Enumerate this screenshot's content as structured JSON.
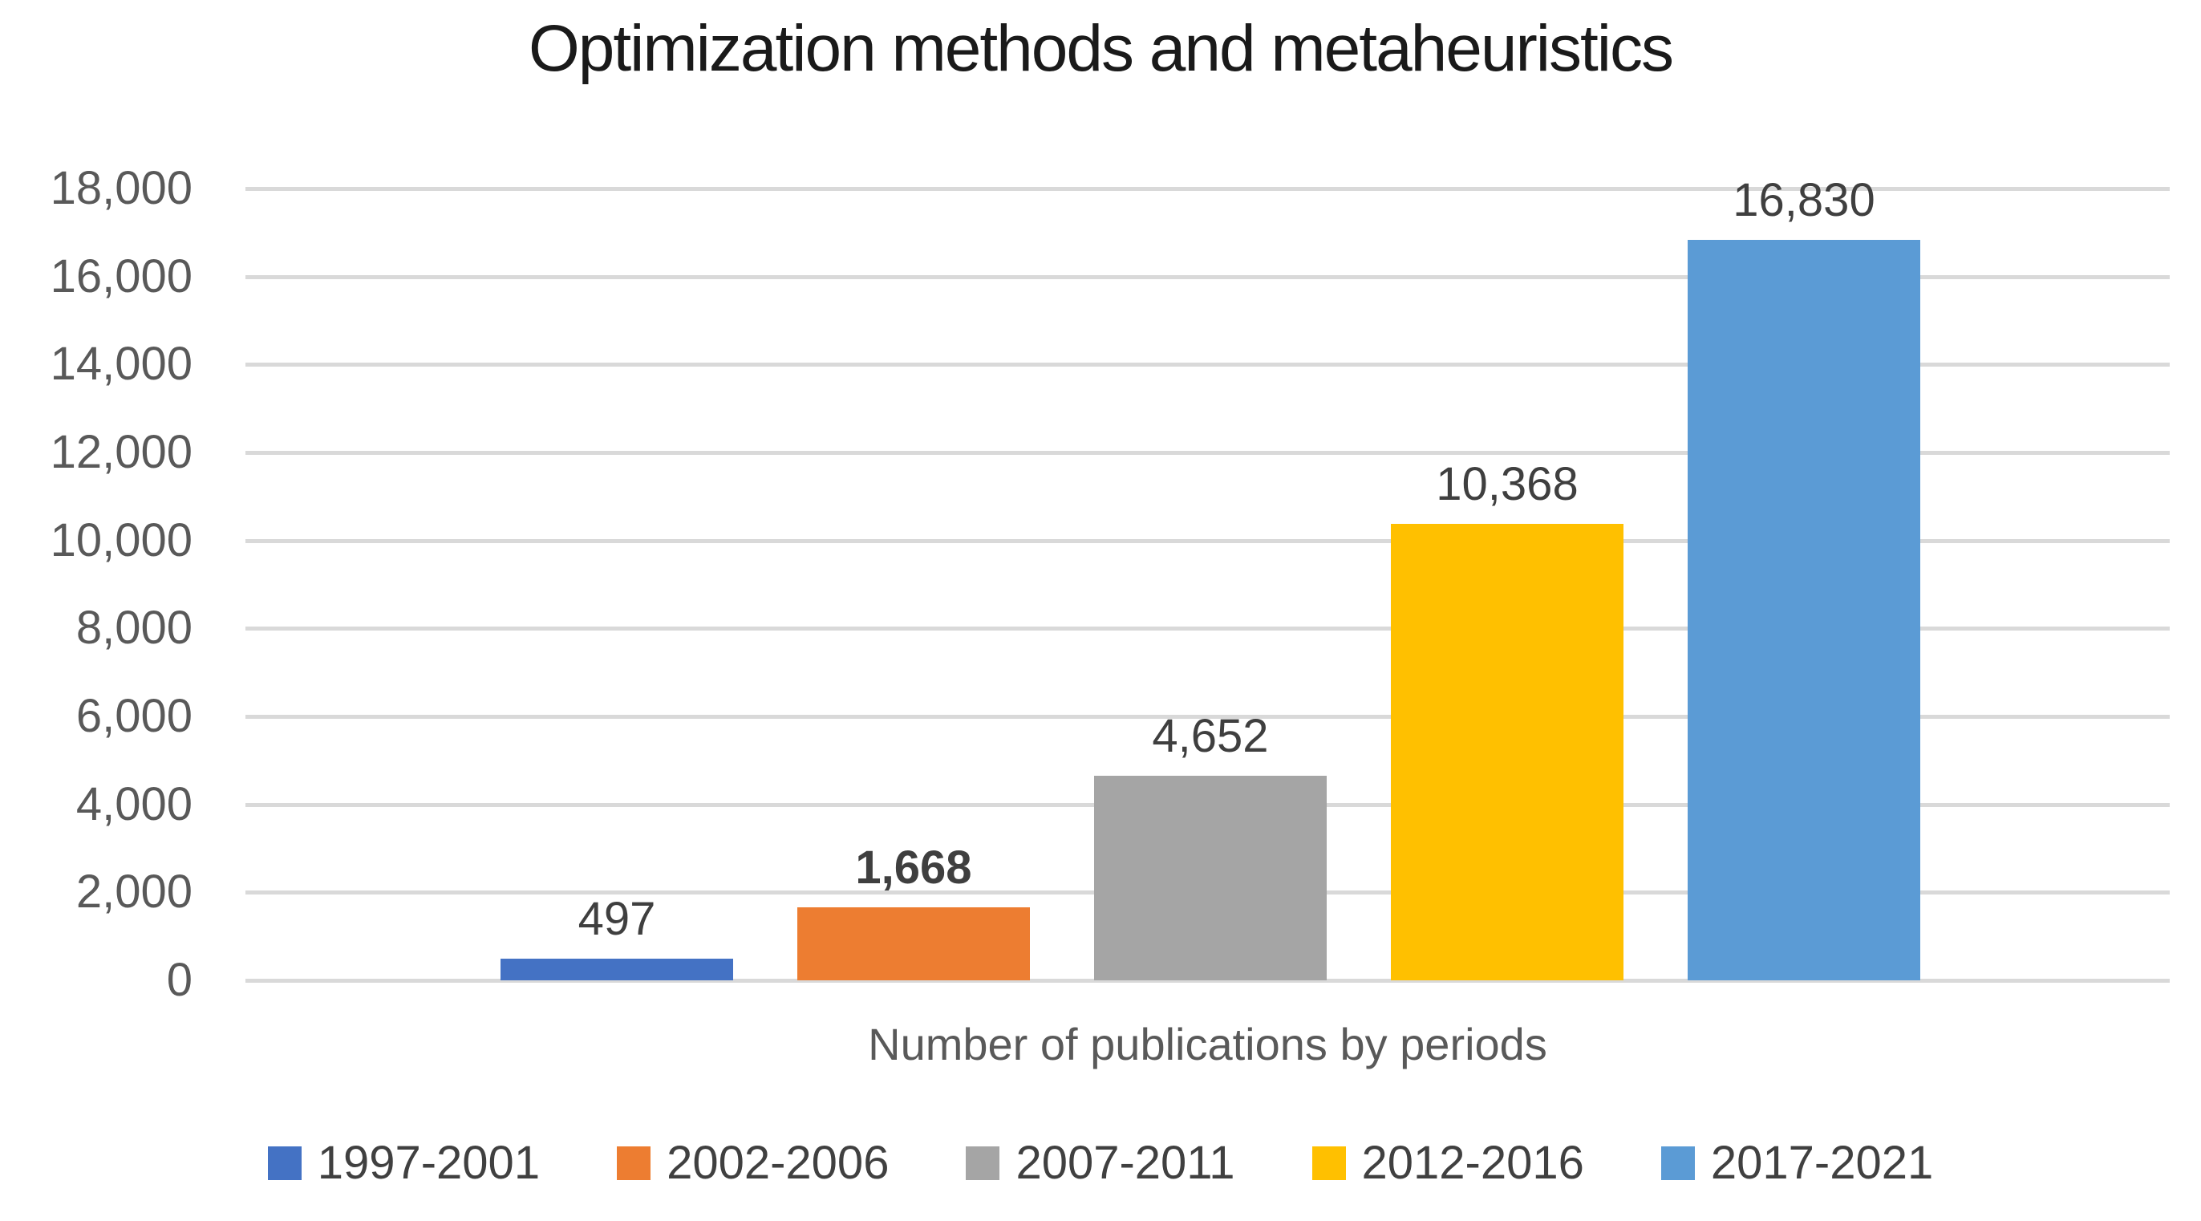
{
  "title": "Optimization methods and metaheuristics",
  "chart_data": {
    "type": "bar",
    "title": "Optimization methods and metaheuristics",
    "xlabel": "Number of publications by periods",
    "ylabel": "",
    "categories": [
      "1997-2001",
      "2002-2006",
      "2007-2011",
      "2012-2016",
      "2017-2021"
    ],
    "values": [
      497,
      1668,
      4652,
      10368,
      16830
    ],
    "value_labels": [
      "497",
      "1,668",
      "4,652",
      "10,368",
      "16,830"
    ],
    "bold_value_label_index": 1,
    "series_colors": [
      "#4472C4",
      "#ED7D31",
      "#A5A5A5",
      "#FFC000",
      "#5B9BD5"
    ],
    "ylim": [
      0,
      18000
    ],
    "ytick_step": 2000,
    "ytick_labels": [
      "0",
      "2,000",
      "4,000",
      "6,000",
      "8,000",
      "10,000",
      "12,000",
      "14,000",
      "16,000",
      "18,000"
    ],
    "grid": true,
    "gridline_color": "#D9D9D9",
    "legend_position": "bottom",
    "colors": {
      "title_text": "#1a1a1a",
      "axis_text": "#595959",
      "data_label_text": "#3f3f3f",
      "legend_text": "#404040"
    }
  }
}
